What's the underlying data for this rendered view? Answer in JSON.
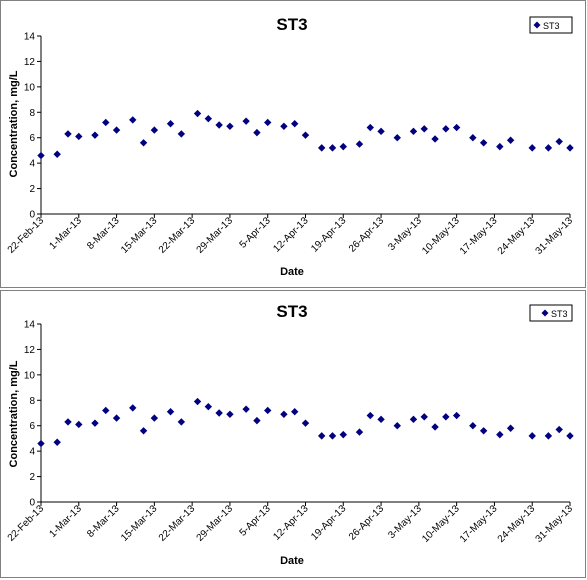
{
  "colors": {
    "marker": "#000080",
    "axis": "#000000",
    "border": "#808080",
    "background": "#ffffff"
  },
  "chart_data": [
    {
      "type": "scatter",
      "title": "ST3",
      "xlabel": "Date",
      "ylabel": "Concentration, mg/L",
      "ylim": [
        0,
        14
      ],
      "yticks": [
        "0",
        "2",
        "4",
        "6",
        "8",
        "10",
        "12",
        "14"
      ],
      "xlim": [
        "2013-02-22",
        "2013-05-31"
      ],
      "xticks": [
        "22-Feb-13",
        "1-Mar-13",
        "8-Mar-13",
        "15-Mar-13",
        "22-Mar-13",
        "29-Mar-13",
        "5-Apr-13",
        "12-Apr-13",
        "19-Apr-13",
        "26-Apr-13",
        "3-May-13",
        "10-May-13",
        "17-May-13",
        "24-May-13",
        "31-May-13"
      ],
      "grid": false,
      "legend_position": "top-right",
      "series": [
        {
          "name": "ST3",
          "points": [
            {
              "x": "2013-02-22",
              "y": 4.6
            },
            {
              "x": "2013-02-25",
              "y": 4.7
            },
            {
              "x": "2013-02-27",
              "y": 6.3
            },
            {
              "x": "2013-03-01",
              "y": 6.1
            },
            {
              "x": "2013-03-04",
              "y": 6.2
            },
            {
              "x": "2013-03-06",
              "y": 7.2
            },
            {
              "x": "2013-03-08",
              "y": 6.6
            },
            {
              "x": "2013-03-11",
              "y": 7.4
            },
            {
              "x": "2013-03-13",
              "y": 5.6
            },
            {
              "x": "2013-03-15",
              "y": 6.6
            },
            {
              "x": "2013-03-18",
              "y": 7.1
            },
            {
              "x": "2013-03-20",
              "y": 6.3
            },
            {
              "x": "2013-03-23",
              "y": 7.9
            },
            {
              "x": "2013-03-25",
              "y": 7.5
            },
            {
              "x": "2013-03-27",
              "y": 7.0
            },
            {
              "x": "2013-03-29",
              "y": 6.9
            },
            {
              "x": "2013-04-01",
              "y": 7.3
            },
            {
              "x": "2013-04-03",
              "y": 6.4
            },
            {
              "x": "2013-04-05",
              "y": 7.2
            },
            {
              "x": "2013-04-08",
              "y": 6.9
            },
            {
              "x": "2013-04-10",
              "y": 7.1
            },
            {
              "x": "2013-04-12",
              "y": 6.2
            },
            {
              "x": "2013-04-15",
              "y": 5.2
            },
            {
              "x": "2013-04-17",
              "y": 5.2
            },
            {
              "x": "2013-04-19",
              "y": 5.3
            },
            {
              "x": "2013-04-22",
              "y": 5.5
            },
            {
              "x": "2013-04-24",
              "y": 6.8
            },
            {
              "x": "2013-04-26",
              "y": 6.5
            },
            {
              "x": "2013-04-29",
              "y": 6.0
            },
            {
              "x": "2013-05-02",
              "y": 6.5
            },
            {
              "x": "2013-05-04",
              "y": 6.7
            },
            {
              "x": "2013-05-06",
              "y": 5.9
            },
            {
              "x": "2013-05-08",
              "y": 6.7
            },
            {
              "x": "2013-05-10",
              "y": 6.8
            },
            {
              "x": "2013-05-13",
              "y": 6.0
            },
            {
              "x": "2013-05-15",
              "y": 5.6
            },
            {
              "x": "2013-05-18",
              "y": 5.3
            },
            {
              "x": "2013-05-20",
              "y": 5.8
            },
            {
              "x": "2013-05-24",
              "y": 5.2
            },
            {
              "x": "2013-05-27",
              "y": 5.2
            },
            {
              "x": "2013-05-29",
              "y": 5.7
            },
            {
              "x": "2013-05-31",
              "y": 5.2
            }
          ]
        }
      ]
    },
    {
      "type": "scatter",
      "title": "ST3",
      "xlabel": "Date",
      "ylabel": "Concentration, mg/L",
      "ylim": [
        0,
        14
      ],
      "yticks": [
        "0",
        "2",
        "4",
        "6",
        "8",
        "10",
        "12",
        "14"
      ],
      "xlim": [
        "2013-02-22",
        "2013-05-31"
      ],
      "xticks": [
        "22-Feb-13",
        "1-Mar-13",
        "8-Mar-13",
        "15-Mar-13",
        "22-Mar-13",
        "29-Mar-13",
        "5-Apr-13",
        "12-Apr-13",
        "19-Apr-13",
        "26-Apr-13",
        "3-May-13",
        "10-May-13",
        "17-May-13",
        "24-May-13",
        "31-May-13"
      ],
      "grid": false,
      "legend_position": "top-right",
      "series": [
        {
          "name": "ST3",
          "points": [
            {
              "x": "2013-02-22",
              "y": 4.6
            },
            {
              "x": "2013-02-25",
              "y": 4.7
            },
            {
              "x": "2013-02-27",
              "y": 6.3
            },
            {
              "x": "2013-03-01",
              "y": 6.1
            },
            {
              "x": "2013-03-04",
              "y": 6.2
            },
            {
              "x": "2013-03-06",
              "y": 7.2
            },
            {
              "x": "2013-03-08",
              "y": 6.6
            },
            {
              "x": "2013-03-11",
              "y": 7.4
            },
            {
              "x": "2013-03-13",
              "y": 5.6
            },
            {
              "x": "2013-03-15",
              "y": 6.6
            },
            {
              "x": "2013-03-18",
              "y": 7.1
            },
            {
              "x": "2013-03-20",
              "y": 6.3
            },
            {
              "x": "2013-03-23",
              "y": 7.9
            },
            {
              "x": "2013-03-25",
              "y": 7.5
            },
            {
              "x": "2013-03-27",
              "y": 7.0
            },
            {
              "x": "2013-03-29",
              "y": 6.9
            },
            {
              "x": "2013-04-01",
              "y": 7.3
            },
            {
              "x": "2013-04-03",
              "y": 6.4
            },
            {
              "x": "2013-04-05",
              "y": 7.2
            },
            {
              "x": "2013-04-08",
              "y": 6.9
            },
            {
              "x": "2013-04-10",
              "y": 7.1
            },
            {
              "x": "2013-04-12",
              "y": 6.2
            },
            {
              "x": "2013-04-15",
              "y": 5.2
            },
            {
              "x": "2013-04-17",
              "y": 5.2
            },
            {
              "x": "2013-04-19",
              "y": 5.3
            },
            {
              "x": "2013-04-22",
              "y": 5.5
            },
            {
              "x": "2013-04-24",
              "y": 6.8
            },
            {
              "x": "2013-04-26",
              "y": 6.5
            },
            {
              "x": "2013-04-29",
              "y": 6.0
            },
            {
              "x": "2013-05-02",
              "y": 6.5
            },
            {
              "x": "2013-05-04",
              "y": 6.7
            },
            {
              "x": "2013-05-06",
              "y": 5.9
            },
            {
              "x": "2013-05-08",
              "y": 6.7
            },
            {
              "x": "2013-05-10",
              "y": 6.8
            },
            {
              "x": "2013-05-13",
              "y": 6.0
            },
            {
              "x": "2013-05-15",
              "y": 5.6
            },
            {
              "x": "2013-05-18",
              "y": 5.3
            },
            {
              "x": "2013-05-20",
              "y": 5.8
            },
            {
              "x": "2013-05-24",
              "y": 5.2
            },
            {
              "x": "2013-05-27",
              "y": 5.2
            },
            {
              "x": "2013-05-29",
              "y": 5.7
            },
            {
              "x": "2013-05-31",
              "y": 5.2
            }
          ]
        }
      ]
    }
  ]
}
